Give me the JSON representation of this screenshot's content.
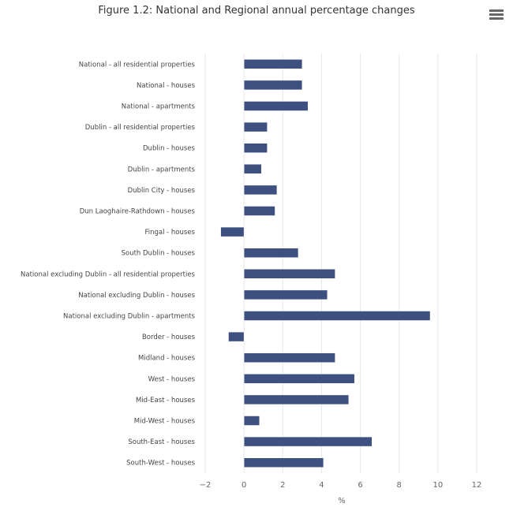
{
  "chart_data": {
    "type": "bar",
    "orientation": "horizontal",
    "title": "Figure 1.2: National and Regional annual percentage changes",
    "xlabel": "%",
    "ylabel": "",
    "xlim": [
      -2,
      12
    ],
    "xticks": [
      -2,
      0,
      2,
      4,
      6,
      8,
      10,
      12
    ],
    "grid": true,
    "bar_color": "#3d5080",
    "categories": [
      "National - all residential properties",
      "National - houses",
      "National - apartments",
      "Dublin - all residential properties",
      "Dublin - houses",
      "Dublin - apartments",
      "Dublin City - houses",
      "Dun Laoghaire-Rathdown - houses",
      "Fingal - houses",
      "South Dublin - houses",
      "National excluding Dublin - all residential properties",
      "National excluding Dublin - houses",
      "National excluding Dublin - apartments",
      "Border - houses",
      "Midland - houses",
      "West - houses",
      "Mid-East - houses",
      "Mid-West - houses",
      "South-East - houses",
      "South-West - houses"
    ],
    "values": [
      3.0,
      3.0,
      3.3,
      1.2,
      1.2,
      0.9,
      1.7,
      1.6,
      -1.2,
      2.8,
      4.7,
      4.3,
      9.6,
      -0.8,
      4.7,
      5.7,
      5.4,
      0.8,
      6.6,
      4.1
    ]
  },
  "menu_icon": "hamburger-menu-icon"
}
